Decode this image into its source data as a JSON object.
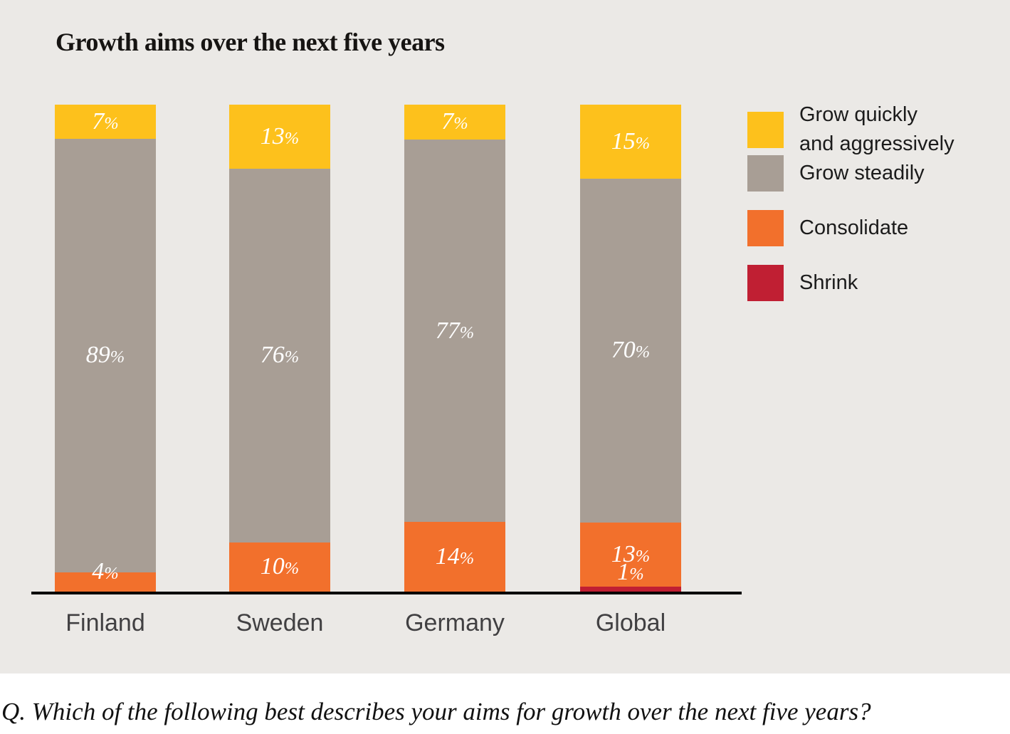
{
  "title": "Growth aims over the next five years",
  "question": "Q. Which of the following best describes your aims for growth over the next five years?",
  "colors": {
    "background_panel": "#EBE9E6",
    "grow_quickly": "#FDC11C",
    "grow_steadily": "#A89E95",
    "consolidate": "#F2702C",
    "shrink": "#C01F33",
    "axis": "#000000",
    "category_text": "#414042"
  },
  "legend": {
    "position": "right",
    "items": [
      {
        "label": "Grow quickly\nand aggressively",
        "color": "#FDC11C"
      },
      {
        "label": "Grow steadily",
        "color": "#A89E95"
      },
      {
        "label": "Consolidate",
        "color": "#F2702C"
      },
      {
        "label": "Shrink",
        "color": "#C01F33"
      }
    ]
  },
  "chart_data": {
    "type": "bar",
    "subtype": "stacked-vertical-100pct",
    "title": "Growth aims over the next five years",
    "categories": [
      "Finland",
      "Sweden",
      "Germany",
      "Global"
    ],
    "series": [
      {
        "name": "Grow quickly and aggressively",
        "color": "#FDC11C",
        "values": [
          7,
          13,
          7,
          15
        ]
      },
      {
        "name": "Grow steadily",
        "color": "#A89E95",
        "values": [
          89,
          76,
          77,
          70
        ]
      },
      {
        "name": "Consolidate",
        "color": "#F2702C",
        "values": [
          4,
          10,
          14,
          13
        ]
      },
      {
        "name": "Shrink",
        "color": "#C01F33",
        "values": [
          0,
          0,
          0,
          1
        ]
      }
    ],
    "value_format": "percent",
    "value_labels": "inside, white italic serif",
    "xlabel": "",
    "ylabel": "",
    "ylim": [
      0,
      100
    ],
    "grid": false,
    "legend_position": "right"
  }
}
